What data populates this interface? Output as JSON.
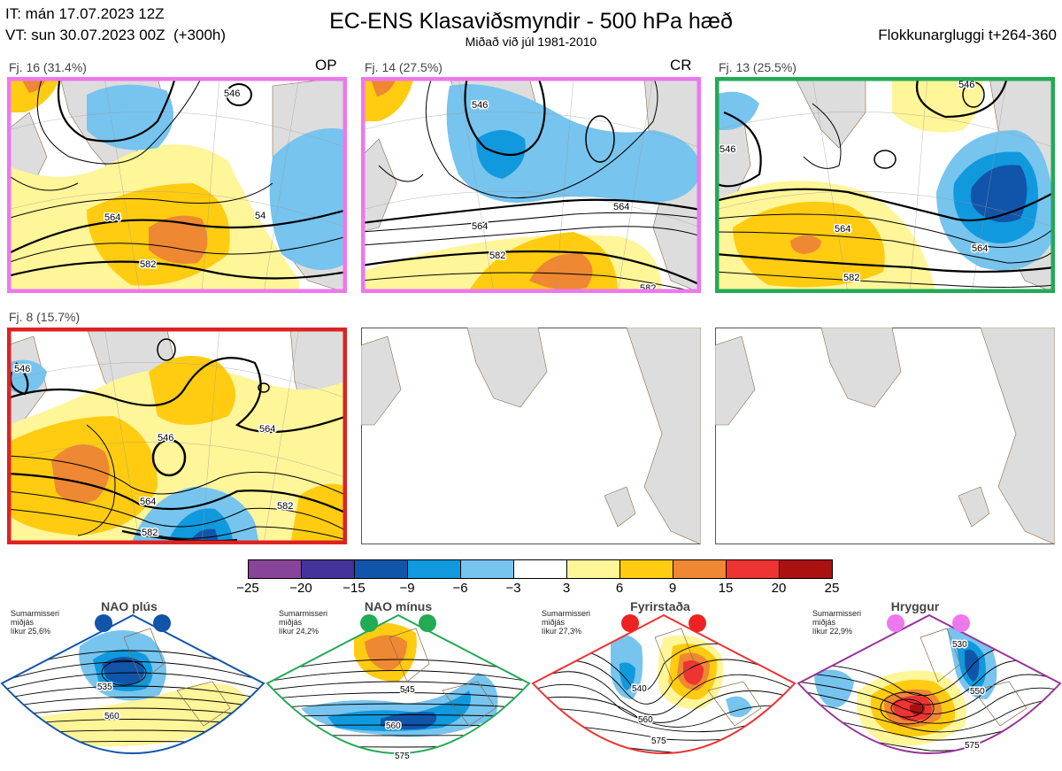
{
  "header": {
    "init_time": "IT: mán 17.07.2023 12Z",
    "valid_time": "VT: sun 30.07.2023 00Z  (+300h)",
    "title": "EC-ENS Klasaviðsmyndir - 500 hPa hæð",
    "subtitle": "Miðað við júl 1981-2010",
    "window": "Flokkunargluggi t+264-360"
  },
  "clusters": [
    {
      "label": "Fj. 16 (31.4%)",
      "tag": "OP",
      "border_color": "#ee77ee",
      "contours": [
        "546",
        "564",
        "582",
        "54"
      ]
    },
    {
      "label": "Fj. 14 (27.5%)",
      "tag": "CR",
      "border_color": "#ee77ee",
      "contours": [
        "546",
        "564",
        "564",
        "582",
        "582"
      ]
    },
    {
      "label": "Fj. 13 (25.5%)",
      "tag": "",
      "border_color": "#22aa55",
      "contours": [
        "546",
        "546",
        "564",
        "564",
        "582"
      ]
    },
    {
      "label": "Fj. 8 (15.7%)",
      "tag": "",
      "border_color": "#dd2222",
      "contours": [
        "546",
        "546",
        "564",
        "564",
        "582",
        "582"
      ]
    }
  ],
  "colorbar": {
    "ticks": [
      "−25",
      "−20",
      "−15",
      "−9",
      "−6",
      "−3",
      "3",
      "6",
      "9",
      "15",
      "20",
      "25"
    ],
    "colors": [
      "#884499",
      "#443399",
      "#1155aa",
      "#1199dd",
      "#77c4ee",
      "#ffffff",
      "#fff599",
      "#ffcc11",
      "#ee8833",
      "#ee3333",
      "#aa1111"
    ]
  },
  "regimes": [
    {
      "name": "NAO plús",
      "info": [
        "Sumarmisseri",
        "miðjás",
        "líkur 25,6%"
      ],
      "marker_color": "#1155aa",
      "border_color": "#1155aa",
      "contours": [
        "535",
        "560"
      ]
    },
    {
      "name": "NAO mínus",
      "info": [
        "Sumarmisseri",
        "miðjás",
        "líkur 24,2%"
      ],
      "marker_color": "#22aa55",
      "border_color": "#22aa55",
      "contours": [
        "545",
        "560",
        "575"
      ]
    },
    {
      "name": "Fyrirstaða",
      "info": [
        "Sumarmisseri",
        "miðjás",
        "líkur 27,3%"
      ],
      "marker_color": "#ee2222",
      "border_color": "#ee3333",
      "contours": [
        "540",
        "560",
        "575"
      ]
    },
    {
      "name": "Hryggur",
      "info": [
        "Sumarmisseri",
        "miðjás",
        "líkur 22,9%"
      ],
      "marker_color": "#ee77ee",
      "border_color": "#993399",
      "contours": [
        "530",
        "550",
        "575"
      ]
    }
  ]
}
